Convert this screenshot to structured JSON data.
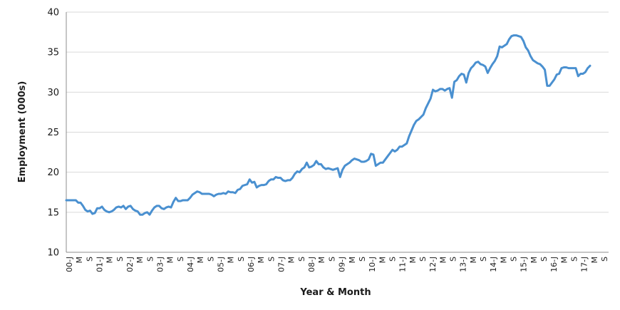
{
  "chart_data": {
    "type": "line",
    "title": "",
    "xlabel": "Year & Month",
    "ylabel": "Employment (000s)",
    "ylim": [
      10,
      40
    ],
    "yticks": [
      10,
      15,
      20,
      25,
      30,
      35,
      40
    ],
    "grid": true,
    "legend": "none",
    "line_color": "#4a90d0",
    "x_tick_labels": [
      "00-J",
      "M",
      "S",
      "01-J",
      "M",
      "S",
      "02-J",
      "M",
      "S",
      "03-J",
      "M",
      "S",
      "04-J",
      "M",
      "S",
      "05-J",
      "M",
      "S",
      "06-J",
      "M",
      "S",
      "07-J",
      "M",
      "S",
      "08-J",
      "M",
      "S",
      "09-J",
      "M",
      "S",
      "10-J",
      "M",
      "S",
      "11-J",
      "M",
      "S",
      "12-J",
      "M",
      "S",
      "13-J",
      "M",
      "S",
      "14-J",
      "M",
      "S",
      "15-J",
      "M",
      "S",
      "16-J",
      "M",
      "S",
      "17-J",
      "M",
      "S"
    ],
    "series": [
      {
        "values": [
          16.5,
          16.5,
          16.5,
          16.5,
          16.5,
          16.2,
          16.2,
          15.8,
          15.3,
          15.1,
          15.2,
          14.8,
          14.9,
          15.5,
          15.5,
          15.7,
          15.3,
          15.1,
          15.0,
          15.1,
          15.3,
          15.6,
          15.7,
          15.6,
          15.8,
          15.4,
          15.7,
          15.8,
          15.4,
          15.2,
          15.1,
          14.7,
          14.7,
          14.9,
          15.0,
          14.7,
          15.2,
          15.6,
          15.8,
          15.8,
          15.5,
          15.4,
          15.6,
          15.7,
          15.6,
          16.3,
          16.8,
          16.4,
          16.4,
          16.5,
          16.5,
          16.5,
          16.8,
          17.2,
          17.4,
          17.6,
          17.5,
          17.3,
          17.3,
          17.3,
          17.3,
          17.2,
          17.0,
          17.2,
          17.3,
          17.3,
          17.4,
          17.3,
          17.6,
          17.5,
          17.5,
          17.4,
          17.8,
          17.9,
          18.3,
          18.4,
          18.5,
          19.1,
          18.7,
          18.8,
          18.1,
          18.3,
          18.4,
          18.4,
          18.5,
          18.9,
          19.1,
          19.1,
          19.4,
          19.3,
          19.3,
          19.0,
          18.9,
          19.0,
          19.0,
          19.3,
          19.8,
          20.1,
          20.0,
          20.4,
          20.6,
          21.2,
          20.6,
          20.7,
          20.9,
          21.4,
          21.0,
          21.0,
          20.6,
          20.4,
          20.5,
          20.4,
          20.3,
          20.4,
          20.5,
          19.4,
          20.3,
          20.8,
          21.0,
          21.2,
          21.5,
          21.7,
          21.6,
          21.5,
          21.3,
          21.3,
          21.4,
          21.6,
          22.3,
          22.2,
          20.8,
          21.0,
          21.2,
          21.2,
          21.6,
          22.0,
          22.4,
          22.8,
          22.6,
          22.8,
          23.2,
          23.2,
          23.4,
          23.6,
          24.5,
          25.2,
          25.9,
          26.4,
          26.6,
          26.9,
          27.2,
          28.0,
          28.6,
          29.2,
          30.3,
          30.1,
          30.2,
          30.4,
          30.4,
          30.2,
          30.4,
          30.5,
          29.3,
          31.3,
          31.5,
          32.0,
          32.3,
          32.2,
          31.2,
          32.4,
          33.0,
          33.3,
          33.7,
          33.8,
          33.5,
          33.4,
          33.2,
          32.4,
          33.0,
          33.5,
          33.9,
          34.5,
          35.7,
          35.6,
          35.8,
          36.0,
          36.6,
          37.0,
          37.1,
          37.1,
          37.0,
          36.9,
          36.4,
          35.6,
          35.2,
          34.5,
          34.0,
          33.8,
          33.6,
          33.5,
          33.2,
          32.8,
          30.8,
          30.8,
          31.2,
          31.6,
          32.2,
          32.3,
          33.0,
          33.1,
          33.1,
          33.0,
          33.0,
          33.0,
          33.0,
          32.0,
          32.3,
          32.3,
          32.5,
          33.0,
          33.3
        ]
      }
    ]
  }
}
